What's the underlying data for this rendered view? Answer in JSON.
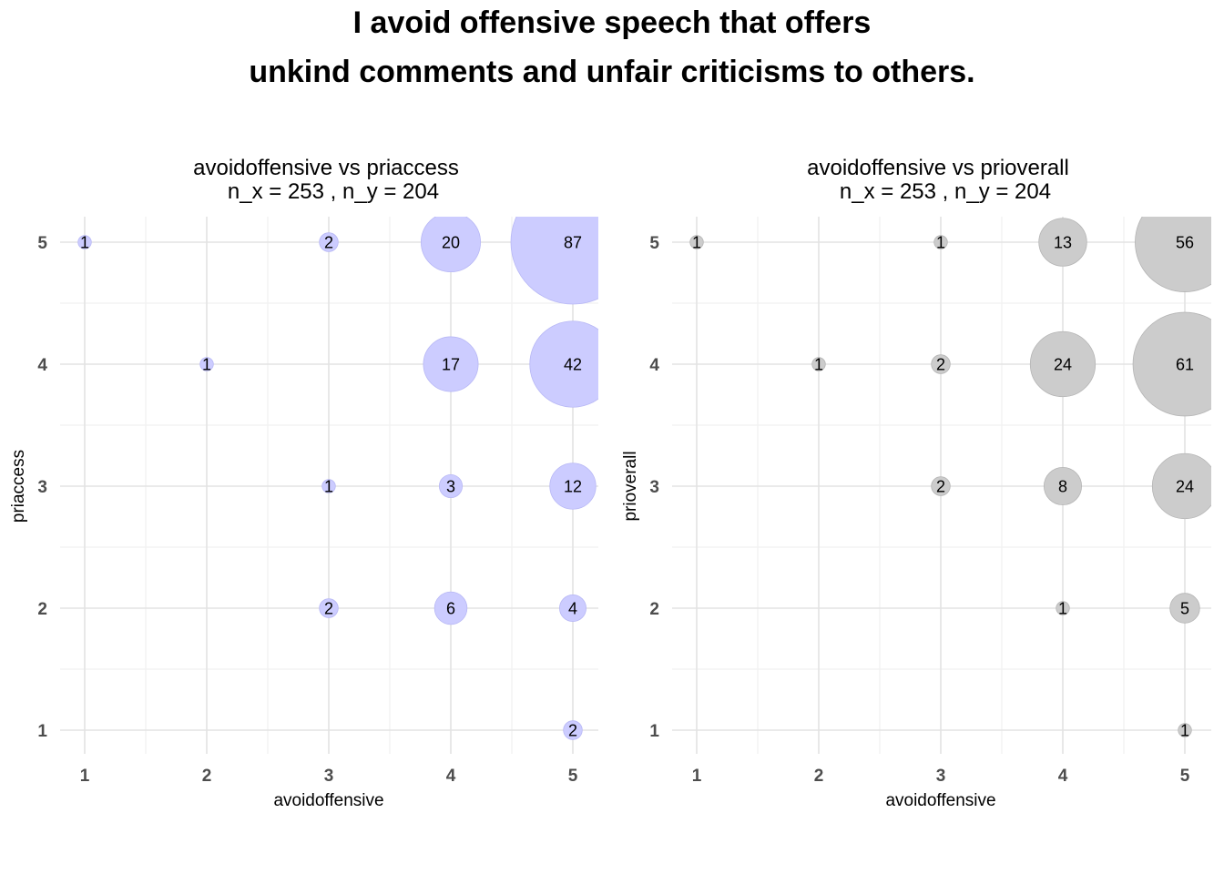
{
  "title_line1": "I avoid offensive speech that offers",
  "title_line2": "unkind comments and unfair criticisms to others.",
  "chart_data": [
    {
      "type": "scatter",
      "subtype": "bubble",
      "title": "avoidoffensive vs priaccess",
      "subtitle": "n_x = 253 , n_y = 204",
      "xlabel": "avoidoffensive",
      "ylabel": "priaccess",
      "xticks": [
        "1",
        "2",
        "3",
        "4",
        "5"
      ],
      "yticks": [
        "1",
        "2",
        "3",
        "4",
        "5"
      ],
      "xlim": [
        0.8,
        5.2
      ],
      "ylim": [
        0.8,
        5.2
      ],
      "grid": true,
      "fill": "#ccccff",
      "stroke": "#b8b8f5",
      "points": [
        {
          "x": 1,
          "y": 5,
          "n": 1
        },
        {
          "x": 3,
          "y": 5,
          "n": 2
        },
        {
          "x": 4,
          "y": 5,
          "n": 20
        },
        {
          "x": 5,
          "y": 5,
          "n": 87
        },
        {
          "x": 2,
          "y": 4,
          "n": 1
        },
        {
          "x": 4,
          "y": 4,
          "n": 17
        },
        {
          "x": 5,
          "y": 4,
          "n": 42
        },
        {
          "x": 3,
          "y": 3,
          "n": 1
        },
        {
          "x": 4,
          "y": 3,
          "n": 3
        },
        {
          "x": 5,
          "y": 3,
          "n": 12
        },
        {
          "x": 3,
          "y": 2,
          "n": 2
        },
        {
          "x": 4,
          "y": 2,
          "n": 6
        },
        {
          "x": 5,
          "y": 2,
          "n": 4
        },
        {
          "x": 5,
          "y": 1,
          "n": 2
        }
      ]
    },
    {
      "type": "scatter",
      "subtype": "bubble",
      "title": "avoidoffensive vs prioverall",
      "subtitle": "n_x = 253 , n_y = 204",
      "xlabel": "avoidoffensive",
      "ylabel": "prioverall",
      "xticks": [
        "1",
        "2",
        "3",
        "4",
        "5"
      ],
      "yticks": [
        "1",
        "2",
        "3",
        "4",
        "5"
      ],
      "xlim": [
        0.8,
        5.2
      ],
      "ylim": [
        0.8,
        5.2
      ],
      "grid": true,
      "fill": "#cccccc",
      "stroke": "#b5b5b5",
      "points": [
        {
          "x": 1,
          "y": 5,
          "n": 1
        },
        {
          "x": 3,
          "y": 5,
          "n": 1
        },
        {
          "x": 4,
          "y": 5,
          "n": 13
        },
        {
          "x": 5,
          "y": 5,
          "n": 56
        },
        {
          "x": 2,
          "y": 4,
          "n": 1
        },
        {
          "x": 3,
          "y": 4,
          "n": 2
        },
        {
          "x": 4,
          "y": 4,
          "n": 24
        },
        {
          "x": 5,
          "y": 4,
          "n": 61
        },
        {
          "x": 3,
          "y": 3,
          "n": 2
        },
        {
          "x": 4,
          "y": 3,
          "n": 8
        },
        {
          "x": 5,
          "y": 3,
          "n": 24
        },
        {
          "x": 4,
          "y": 2,
          "n": 1
        },
        {
          "x": 5,
          "y": 2,
          "n": 5
        },
        {
          "x": 5,
          "y": 1,
          "n": 1
        }
      ]
    }
  ]
}
